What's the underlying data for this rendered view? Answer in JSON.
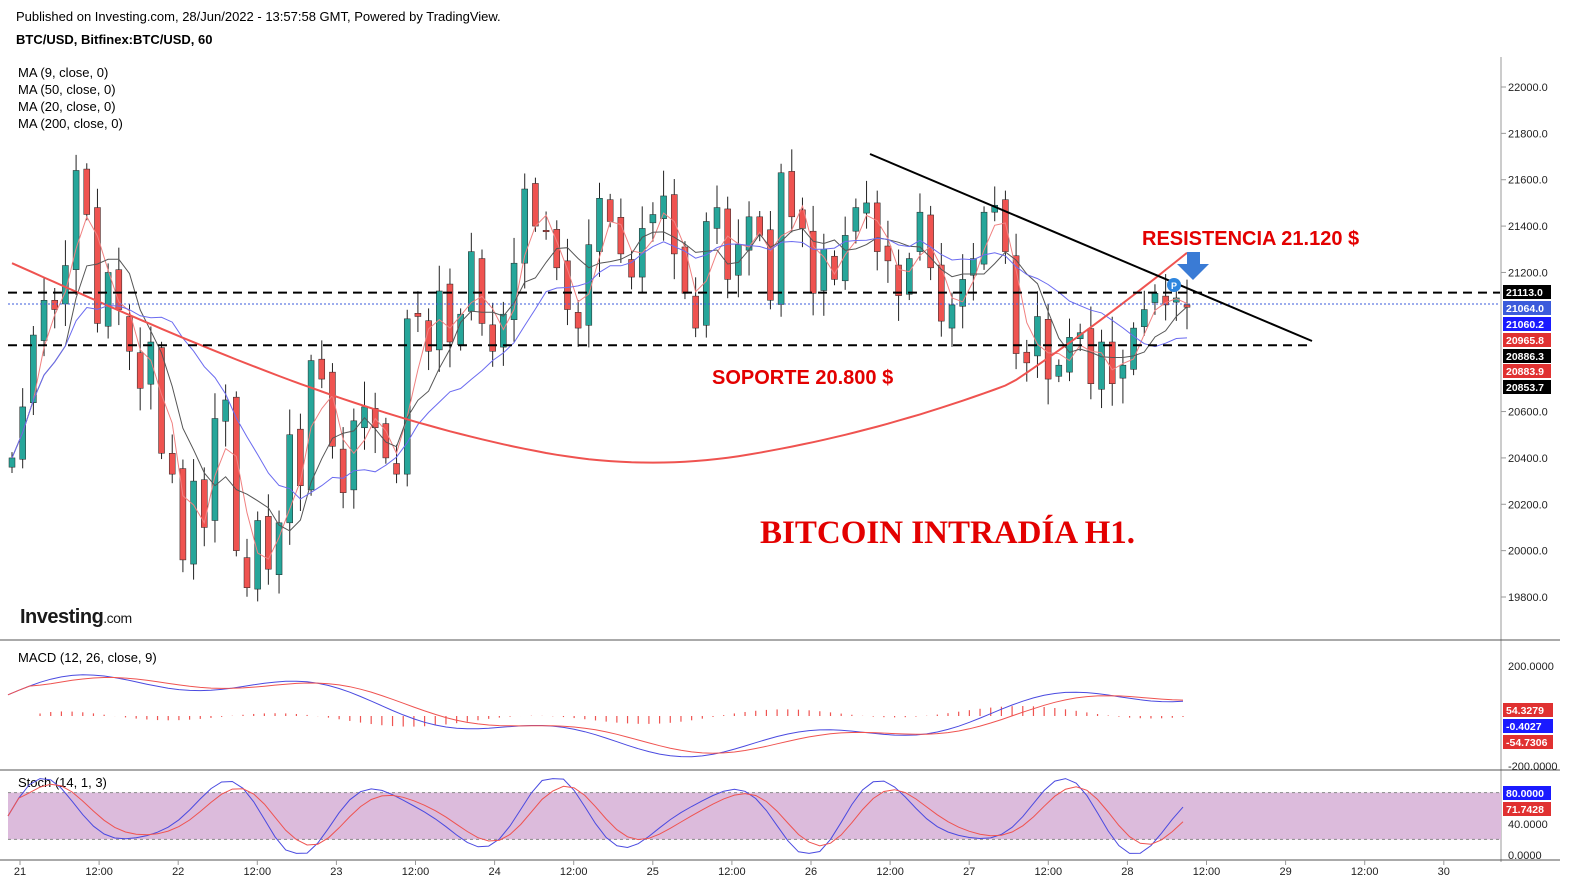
{
  "header": {
    "published": "Published on Investing.com, 28/Jun/2022 - 13:57:58 GMT, Powered by TradingView.",
    "symbol": "BTC/USD, Bitfinex:BTC/USD, 60"
  },
  "legend": {
    "ma9": "MA (9, close, 0)",
    "ma50": "MA (50, close, 0)",
    "ma20": "MA (20, close, 0)",
    "ma200": "MA (200, close, 0)"
  },
  "logo": {
    "main": "Investing",
    "suffix": ".com"
  },
  "annotations": {
    "resistance": "RESISTENCIA 21.120 $",
    "support": "SOPORTE  20.800 $",
    "title": "BITCOIN INTRADÍA H1."
  },
  "colors": {
    "up": "#26a69a",
    "down": "#ef5350",
    "ma9": "#f08080",
    "ma20": "#555555",
    "ma50": "#6b6bf0",
    "ma200": "#ef5350",
    "annotation": "#e30000",
    "stoch_band": "#dcbbdc"
  },
  "chart_data": [
    {
      "type": "candlestick",
      "title": "BTC/USD, Bitfinex:BTC/USD, 60",
      "ylim": [
        19650,
        22180
      ],
      "y_ticks": [
        22000,
        21800,
        21600,
        21400,
        21200,
        20600,
        20400,
        20200,
        20000,
        19800
      ],
      "x_ticks": [
        "21",
        "12:00",
        "22",
        "12:00",
        "23",
        "12:00",
        "24",
        "12:00",
        "25",
        "12:00",
        "26",
        "12:00",
        "27",
        "12:00",
        "28",
        "12:00",
        "29",
        "12:00",
        "30"
      ],
      "price_labels": [
        {
          "value": "21113.0",
          "bg": "#000000"
        },
        {
          "value": "21064.0",
          "bg": "#3b5bdb"
        },
        {
          "value": "21060.2",
          "bg": "#1a1aff"
        },
        {
          "value": "20965.8",
          "bg": "#e03131"
        },
        {
          "value": "20886.3",
          "bg": "#000000"
        },
        {
          "value": "20883.9",
          "bg": "#e03131"
        },
        {
          "value": "20853.7",
          "bg": "#000000"
        }
      ],
      "levels": {
        "resistance": 21113,
        "support": 20886,
        "current": 21064
      },
      "close_path": [
        20400,
        20620,
        20930,
        21080,
        21040,
        21230,
        21640,
        21450,
        20980,
        21200,
        21040,
        20860,
        20700,
        20900,
        20420,
        20330,
        19960,
        20300,
        20100,
        20570,
        20650,
        20000,
        19840,
        20130,
        19920,
        20120,
        20500,
        20280,
        20820,
        20740,
        20450,
        20250,
        20560,
        20620,
        20530,
        20400,
        20330,
        21000,
        21010,
        20860,
        21120,
        20900,
        21020,
        21290,
        20980,
        20860,
        21020,
        21240,
        21560,
        21400,
        21380,
        21220,
        21040,
        20960,
        21320,
        21520,
        21420,
        21280,
        21180,
        21390,
        21450,
        21530,
        21280,
        21110,
        20960,
        21420,
        21480,
        21170,
        21320,
        21440,
        21360,
        21080,
        21630,
        21440,
        21390,
        21110,
        21300,
        21170,
        21360,
        21480,
        21500,
        21290,
        21250,
        21100,
        21260,
        21460,
        21220,
        20990,
        21060,
        21170,
        21260,
        21460,
        21490,
        21290,
        20850,
        20810,
        21010,
        20740,
        20800,
        20920,
        20940,
        20720,
        20900,
        20720,
        20800,
        20960,
        21040,
        21110,
        21060,
        21090,
        21050
      ]
    },
    {
      "type": "line",
      "title": "MACD (12, 26, close, 9)",
      "y_ticks": [
        200,
        -200
      ],
      "labels": [
        {
          "value": "54.3279",
          "bg": "#e03131"
        },
        {
          "value": "-0.4027",
          "bg": "#1a1aff"
        },
        {
          "value": "-54.7306",
          "bg": "#e03131"
        }
      ]
    },
    {
      "type": "line",
      "title": "Stoch (14, 1, 3)",
      "y_ticks": [
        40,
        0
      ],
      "band": [
        20,
        80
      ],
      "labels": [
        {
          "value": "80.0000",
          "bg": "#1a1aff"
        },
        {
          "value": "71.7428",
          "bg": "#e03131"
        }
      ]
    }
  ]
}
